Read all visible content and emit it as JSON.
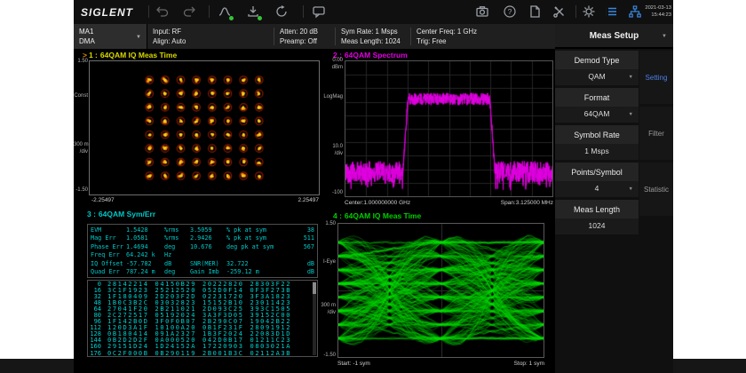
{
  "toolbar": {
    "brand": "SIGLENT",
    "icons_left": [
      "undo",
      "redo",
      "peak-search",
      "save",
      "preset",
      "message"
    ],
    "icons_right": [
      "camera",
      "help",
      "file",
      "tools",
      "gear",
      "menu",
      "lan"
    ],
    "timestamp": {
      "date": "2021-03-13",
      "time": "15:44:23"
    }
  },
  "config": {
    "channel": {
      "line1": "MA1",
      "line2": "DMA"
    },
    "segments": [
      {
        "line1": "Input: RF",
        "line2": "Align: Auto"
      },
      {
        "line1": "Atten: 20 dB",
        "line2": "Preamp: Off"
      },
      {
        "line1": "Sym Rate: 1 Msps",
        "line2": "Meas Length: 1024"
      },
      {
        "line1": "Center Freq: 1 GHz",
        "line2": "Trig: Free"
      }
    ]
  },
  "sidebar": {
    "title": "Meas Setup",
    "items": [
      {
        "label": "Demod Type",
        "value": "QAM",
        "dropdown": true
      },
      {
        "label": "Format",
        "value": "64QAM",
        "dropdown": true
      },
      {
        "label": "Symbol Rate",
        "value": "1 Msps",
        "dropdown": false
      },
      {
        "label": "Points/Symbol",
        "value": "4",
        "dropdown": true
      },
      {
        "label": "Meas Length",
        "value": "1024",
        "dropdown": false
      }
    ],
    "tabs": [
      {
        "label": "Setting",
        "active": true
      },
      {
        "label": "Filter",
        "active": false
      },
      {
        "label": "Statistic",
        "active": false
      }
    ]
  },
  "panels": {
    "constellation": {
      "marker": ">",
      "num": "1 :",
      "title": "64QAM  IQ Meas Time",
      "color": "#d8d800",
      "marker_color": "#e08b00",
      "axis": {
        "top": "1.50",
        "name": "Const",
        "div1": "300 m",
        "div2": "/div",
        "bottom": "-1.50",
        "xleft": "-2.25497",
        "xright": "2.25497"
      }
    },
    "spectrum": {
      "num": "2 :",
      "title": "64QAM  Spectrum",
      "color": "#e000e0",
      "axis": {
        "top1": "0.00",
        "top2": "dBm",
        "name": "LogMag",
        "div1": "10.0",
        "div2": "/div",
        "bottom": "-100",
        "xleft": "Center:1.000000000 GHz",
        "xright": "Span:3.125000 MHz"
      }
    },
    "symerr": {
      "num": "3 :",
      "title": "64QAM  Sym/Err",
      "color": "#00c8c8",
      "rows": [
        [
          "EVM",
          "1.5428",
          "%rms",
          "3.5059",
          "% pk at sym",
          "38"
        ],
        [
          "Mag Err",
          "1.0581",
          "%rms",
          "2.9426",
          "% pk at sym",
          "511"
        ],
        [
          "Phase Err",
          "1.4694",
          "deg",
          "10.676",
          "deg pk at sym",
          "567"
        ],
        [
          "Freq Err",
          "64.242 k",
          "Hz",
          "",
          "",
          ""
        ],
        [
          "IQ Offset",
          "-57.782",
          "dB",
          "SNR(MER)",
          "32.722",
          "dB"
        ],
        [
          "Quad Err",
          "787.24 m",
          "deg",
          "Gain Imb",
          "-259.12 m",
          "dB"
        ]
      ],
      "hex_rows": [
        [
          "0",
          "28142214",
          "04150B29",
          "20222820",
          "28303F22"
        ],
        [
          "16",
          "3C1F1923",
          "25212520",
          "052D0F14",
          "0F3F273B"
        ],
        [
          "32",
          "1F180409",
          "2D203F2D",
          "02231720",
          "3F3A1823"
        ],
        [
          "48",
          "1B0C3B2C",
          "03032823",
          "15152B10",
          "23011423"
        ],
        [
          "64",
          "27041F20",
          "2B211021",
          "2D093C25",
          "393C1505"
        ],
        [
          "80",
          "2C272517",
          "05192024",
          "3A3F3D05",
          "39152C00"
        ],
        [
          "96",
          "1F142B0D",
          "3F0F0B07",
          "2B290C07",
          "19042B22"
        ],
        [
          "112",
          "120D3A1F",
          "10100A20",
          "0B1F231F",
          "28091912"
        ],
        [
          "128",
          "0B180414",
          "091A2327",
          "1B3F2024",
          "22083D1D"
        ],
        [
          "144",
          "0B2D2D2F",
          "0A000520",
          "042D0B17",
          "01211C23"
        ],
        [
          "160",
          "29151D24",
          "1D24152A",
          "17220903",
          "0803021A"
        ],
        [
          "176",
          "0C2F000B",
          "0B290119",
          "2B001B3C",
          "02112A3B"
        ]
      ]
    },
    "eye": {
      "num": "4 :",
      "title": "64QAM  IQ Meas Time",
      "color": "#00d000",
      "axis": {
        "top": "1.50",
        "name": "I-Eye",
        "div1": "300 m",
        "div2": "/div",
        "bottom": "-1.50",
        "xleft": "Start: -1 sym",
        "xright": "Stop: 1 sym"
      }
    }
  },
  "chart_data": [
    {
      "id": "constellation",
      "type": "scatter",
      "title": "64QAM IQ Meas Time",
      "xlim": [
        -2.25497,
        2.25497
      ],
      "ylim": [
        -1.5,
        1.5
      ],
      "i_levels": [
        -1.0801,
        -0.7715,
        -0.4629,
        -0.1543,
        0.1543,
        0.4629,
        0.7715,
        1.0801
      ],
      "q_levels": [
        -1.0801,
        -0.7715,
        -0.4629,
        -0.1543,
        0.1543,
        0.4629,
        0.7715,
        1.0801
      ],
      "point_color": "#ffd21e",
      "smear_color": "#ff9000",
      "ring_color": "#8f1a00"
    },
    {
      "id": "spectrum",
      "type": "line",
      "title": "64QAM Spectrum",
      "center": "1.000000000 GHz",
      "span": "3.125000 MHz",
      "ylim_db": [
        -100,
        0
      ],
      "db_per_div": 10,
      "band_frac": [
        0.29,
        0.71
      ],
      "top_db": -28,
      "floor_db": -82,
      "noise_db": 4.5,
      "floor_noise_db": 8,
      "color": "#e100e1",
      "grid_color": "#262626",
      "grid": true
    },
    {
      "id": "eye",
      "type": "line",
      "title": "64QAM IQ Meas Time",
      "x_range_sym": [
        -1,
        1
      ],
      "ylim": [
        -1.5,
        1.5
      ],
      "levels": [
        -1.0801,
        -0.7715,
        -0.4629,
        -0.1543,
        0.1543,
        0.4629,
        0.7715,
        1.0801
      ],
      "trace_count": 230,
      "color": "#00e000"
    }
  ]
}
